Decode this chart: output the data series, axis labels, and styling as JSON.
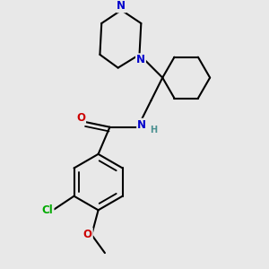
{
  "background_color": "#e8e8e8",
  "atom_colors": {
    "N": "#0000cc",
    "O": "#cc0000",
    "Cl": "#00aa00",
    "C": "#000000",
    "H": "#4a9090"
  },
  "bond_color": "#000000",
  "bond_width": 1.5
}
